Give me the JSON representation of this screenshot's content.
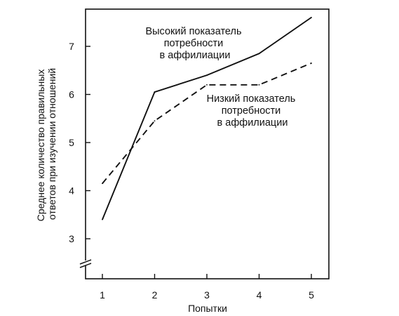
{
  "chart_data": {
    "type": "line",
    "x": [
      1,
      2,
      3,
      4,
      5
    ],
    "series": [
      {
        "name": "Высокий показатель потребности в аффилиации",
        "values": [
          3.4,
          6.05,
          6.4,
          6.85,
          7.6
        ],
        "style": "solid"
      },
      {
        "name": "Низкий показатель потребности в аффилиации",
        "values": [
          4.15,
          5.45,
          6.2,
          6.2,
          6.65
        ],
        "style": "dashed"
      }
    ],
    "xlabel": "Попытки",
    "ylabel": [
      "Среднее количество правильных",
      "ответов при изучении отношений"
    ],
    "x_ticks": [
      "1",
      "2",
      "3",
      "4",
      "5"
    ],
    "y_ticks": [
      "3",
      "4",
      "5",
      "6",
      "7"
    ],
    "xlim": [
      1,
      5
    ],
    "ylim": [
      3,
      7
    ],
    "y_axis_break": true,
    "grid": false,
    "annotations": [
      {
        "series": 0,
        "lines": [
          "Высокий показатель",
          "потребности",
          "в аффилиации"
        ]
      },
      {
        "series": 1,
        "lines": [
          "Низкий показатель",
          "потребности",
          "в аффилиации"
        ]
      }
    ],
    "colors": {
      "line": "#111111",
      "axis": "#111111"
    }
  }
}
